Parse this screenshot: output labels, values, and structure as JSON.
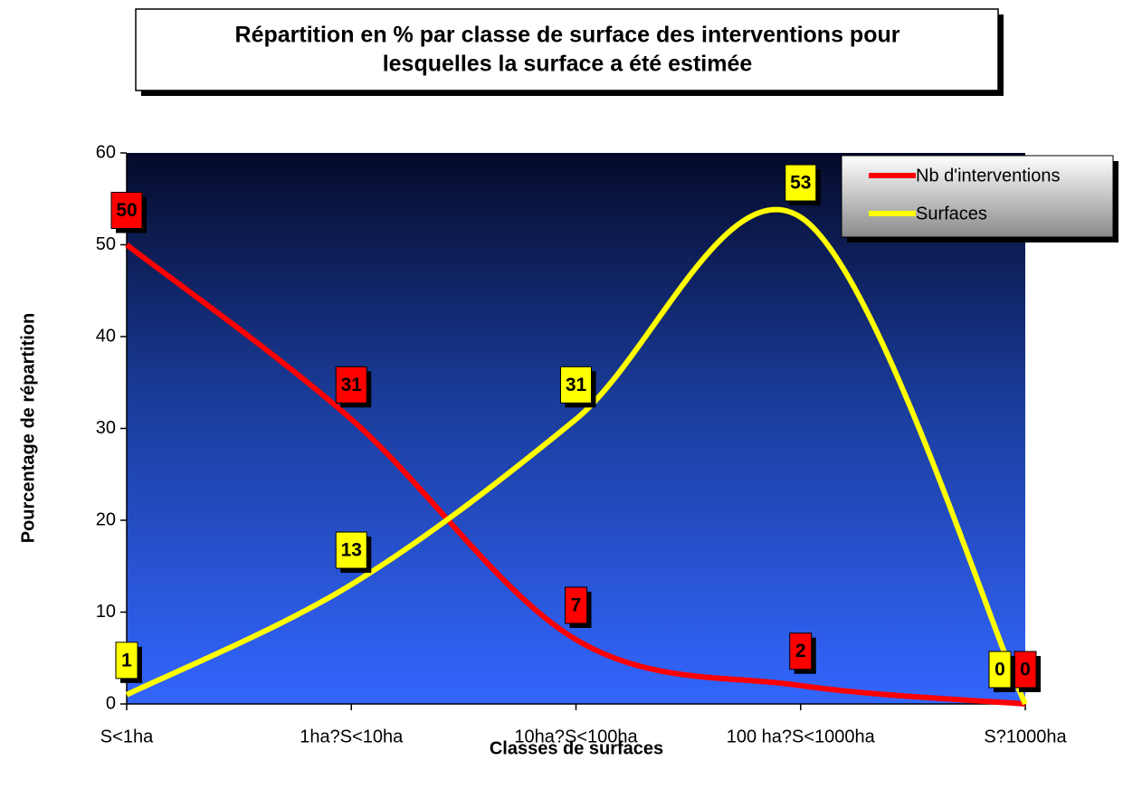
{
  "chart_data": {
    "type": "line",
    "title": "Répartition en % par classe de surface des interventions pour lesquelles la surface a été estimée",
    "title_lines": [
      "Répartition en % par classe de surface des interventions pour",
      "lesquelles la surface a été estimée"
    ],
    "x_label": "Classes de surfaces",
    "y_label": "Pourcentage de répartition",
    "categories": [
      "S<1ha",
      "1ha?S<10ha",
      "10ha?S<100ha",
      "100 ha?S<1000ha",
      "S?1000ha"
    ],
    "series": [
      {
        "name": "Nb d'interventions",
        "color": "#ff0000",
        "values": [
          50,
          31,
          7,
          2,
          0
        ]
      },
      {
        "name": "Surfaces",
        "color": "#ffff00",
        "values": [
          1,
          13,
          31,
          53,
          0
        ]
      }
    ],
    "ylim": [
      0,
      60
    ],
    "yticks": [
      0,
      10,
      20,
      30,
      40,
      50,
      60
    ],
    "smooth": true,
    "legend": "upper right"
  }
}
